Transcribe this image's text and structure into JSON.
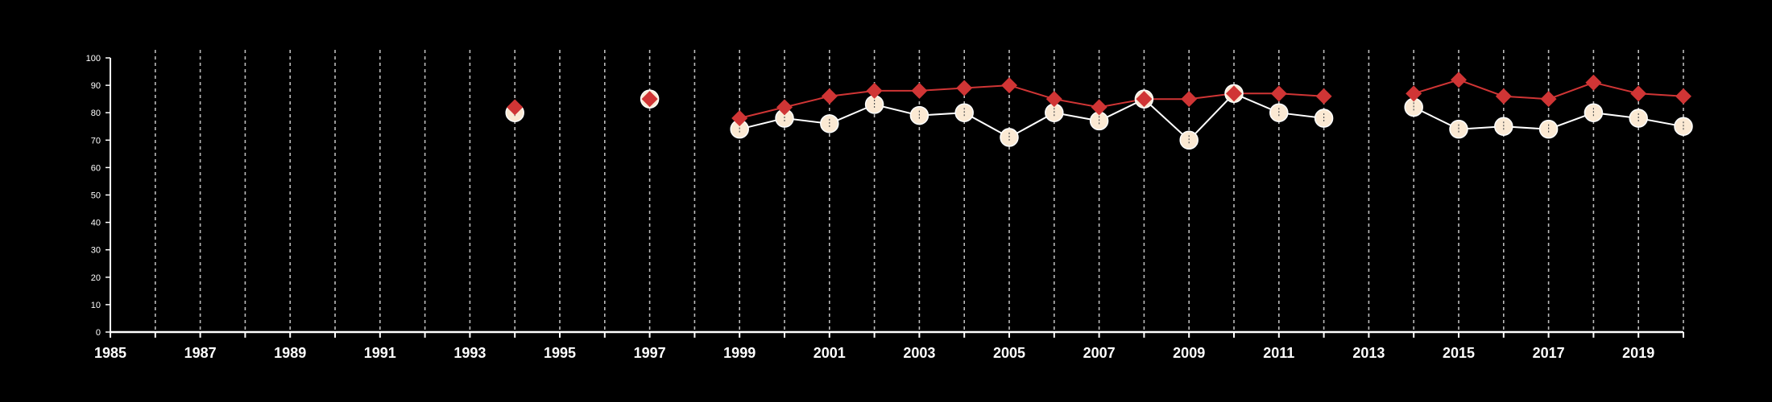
{
  "chart_data": {
    "type": "line",
    "title": "",
    "xlabel": "",
    "ylabel": "",
    "xlim": [
      1985,
      2020
    ],
    "ylim": [
      0,
      100
    ],
    "x_tick_labels": [
      "1985",
      "1987",
      "1989",
      "1991",
      "1993",
      "1995",
      "1997",
      "1999",
      "2001",
      "2003",
      "2005",
      "2007",
      "2009",
      "2011",
      "2013",
      "2015",
      "2017",
      "2019"
    ],
    "y_tick_labels": [
      "0",
      "10",
      "20",
      "30",
      "40",
      "50",
      "60",
      "70",
      "80",
      "90",
      "100"
    ],
    "vertical_gridlines": "dashed, every year 1986-2020",
    "colors": {
      "background": "#000000",
      "axis": "#ffffff",
      "grid": "#bbbbbb",
      "series_red": "#d03535",
      "series_cream": "#fbe9d3"
    },
    "series": [
      {
        "marker": "diamond",
        "color": "#d03535",
        "points": [
          [
            1994,
            82
          ],
          [
            1997,
            85
          ],
          [
            1999,
            78
          ],
          [
            2000,
            82
          ],
          [
            2001,
            86
          ],
          [
            2002,
            88
          ],
          [
            2003,
            88
          ],
          [
            2004,
            89
          ],
          [
            2005,
            90
          ],
          [
            2006,
            85
          ],
          [
            2007,
            82
          ],
          [
            2008,
            85
          ],
          [
            2009,
            85
          ],
          [
            2010,
            87
          ],
          [
            2011,
            87
          ],
          [
            2012,
            86
          ],
          [
            2014,
            87
          ],
          [
            2015,
            92
          ],
          [
            2016,
            86
          ],
          [
            2017,
            85
          ],
          [
            2018,
            91
          ],
          [
            2019,
            87
          ],
          [
            2020,
            86
          ]
        ]
      },
      {
        "marker": "circle",
        "color": "#fbe9d3",
        "points": [
          [
            1994,
            80
          ],
          [
            1997,
            85
          ],
          [
            1999,
            74
          ],
          [
            2000,
            78
          ],
          [
            2001,
            76
          ],
          [
            2002,
            83
          ],
          [
            2003,
            79
          ],
          [
            2004,
            80
          ],
          [
            2005,
            71
          ],
          [
            2006,
            80
          ],
          [
            2007,
            77
          ],
          [
            2008,
            85
          ],
          [
            2009,
            70
          ],
          [
            2010,
            87
          ],
          [
            2011,
            80
          ],
          [
            2012,
            78
          ],
          [
            2014,
            82
          ],
          [
            2015,
            74
          ],
          [
            2016,
            75
          ],
          [
            2017,
            74
          ],
          [
            2018,
            80
          ],
          [
            2019,
            78
          ],
          [
            2020,
            75
          ]
        ]
      }
    ]
  }
}
